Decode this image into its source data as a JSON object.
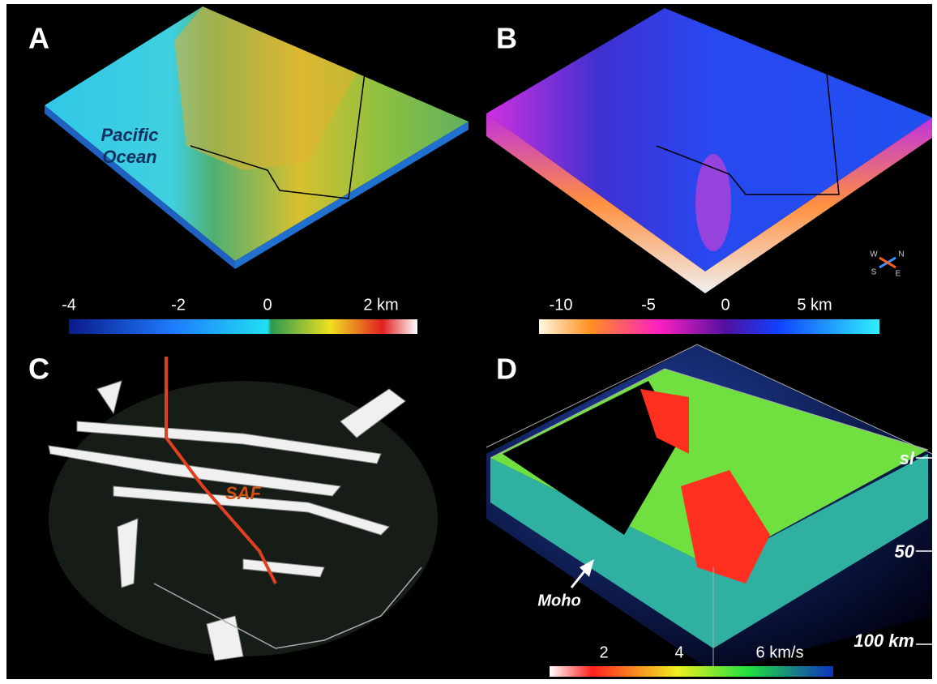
{
  "panels": [
    {
      "label": "A",
      "annotation": [
        "Pacific",
        "Ocean"
      ],
      "colorbar": {
        "labels": [
          "-4",
          "-2",
          "0",
          "2 km"
        ]
      }
    },
    {
      "label": "B",
      "colorbar": {
        "labels": [
          "-10",
          "-5",
          "0",
          "5 km"
        ]
      },
      "compass": [
        "W",
        "N",
        "S",
        "E"
      ]
    },
    {
      "label": "C",
      "annotation": [
        "SAF"
      ]
    },
    {
      "label": "D",
      "annotation": [
        "Moho"
      ],
      "depth_labels": [
        "sl",
        "50",
        "100 km"
      ],
      "colorbar": {
        "labels": [
          "2",
          "4",
          "6 km/s"
        ]
      }
    }
  ]
}
